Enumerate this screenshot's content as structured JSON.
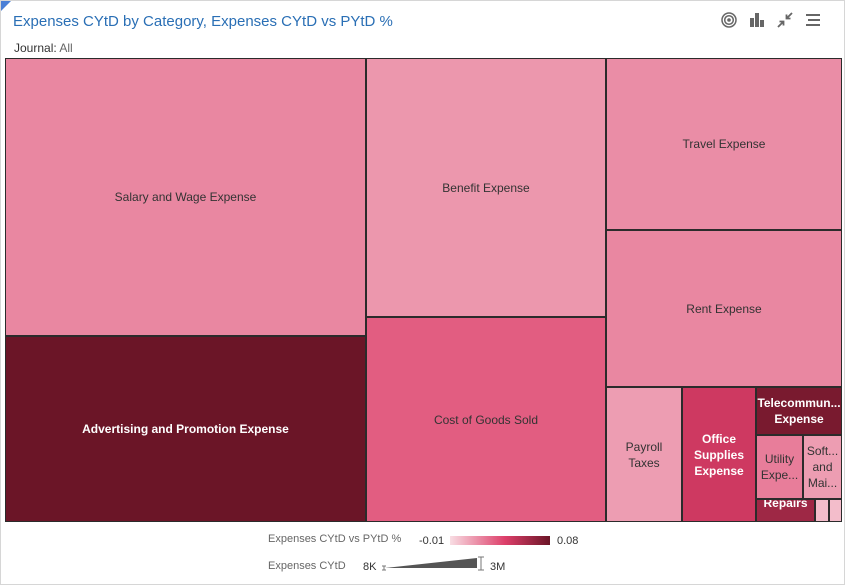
{
  "header": {
    "title": "Expenses CYtD by Category, Expenses CYtD vs PYtD %",
    "filter_label": "Journal:",
    "filter_value": "All"
  },
  "toolbar": {
    "icons": [
      "target-icon",
      "bar-chart-icon",
      "collapse-icon",
      "menu-icon"
    ]
  },
  "colors": {
    "low": "#f8dde3",
    "high": "#6b1527",
    "title": "#2a6fb5"
  },
  "chart_data": {
    "type": "treemap",
    "size_measure": "Expenses CYtD",
    "color_measure": "Expenses CYtD vs PYtD %",
    "color_range": [
      -0.01,
      0.08
    ],
    "color_range_labels": [
      "-0.01",
      "0.08"
    ],
    "size_range_labels": [
      "8K",
      "3M"
    ],
    "items": [
      {
        "label": "Salary and Wage Expense",
        "size": 3000000,
        "color_value": 0.017
      },
      {
        "label": "Advertising and Promotion Expense",
        "size": 2480000,
        "color_value": 0.08
      },
      {
        "label": "Benefit Expense",
        "size": 1780000,
        "color_value": 0.012
      },
      {
        "label": "Cost of Goods Sold",
        "size": 1540000,
        "color_value": 0.03
      },
      {
        "label": "Travel Expense",
        "size": 1020000,
        "color_value": 0.015
      },
      {
        "label": "Rent Expense",
        "size": 1000000,
        "color_value": 0.017
      },
      {
        "label": "Payroll Taxes",
        "size": 500000,
        "color_value": 0.01
      },
      {
        "label": "Office Supplies Expense",
        "size": 500000,
        "color_value": 0.045
      },
      {
        "label": "Telecommun... Expense",
        "size": 150000,
        "color_value": 0.075
      },
      {
        "label": "Utility Expe...",
        "size": 110000,
        "color_value": 0.02
      },
      {
        "label": "Soft... and Mai...",
        "size": 95000,
        "color_value": 0.01
      },
      {
        "label": "Repairs ...",
        "size": 50000,
        "color_value": 0.062
      },
      {
        "label": "",
        "size": 12000,
        "color_value": 0.0
      },
      {
        "label": "",
        "size": 8000,
        "color_value": 0.0
      }
    ]
  }
}
